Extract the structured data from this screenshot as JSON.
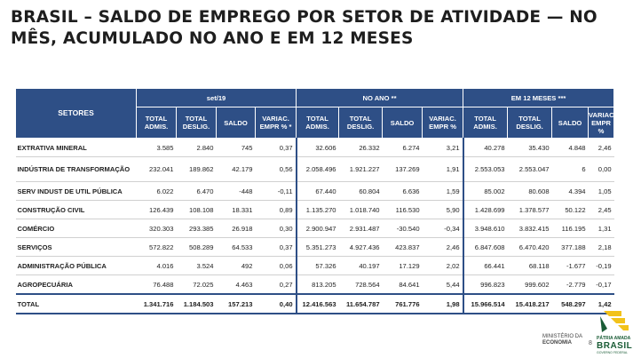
{
  "title": {
    "line1": "BRASIL – SALDO DE EMPREGO POR SETOR DE ATIVIDADE — NO",
    "line2": "MÊS, ACUMULADO NO ANO E EM 12 MESES"
  },
  "table": {
    "sector_header": "SETORES",
    "groups": [
      "set/19",
      "NO ANO **",
      "EM 12 MESES ***"
    ],
    "subheaders": [
      "TOTAL ADMIS.",
      "TOTAL DESLIG.",
      "SALDO",
      "VARIAC. EMPR % *",
      "TOTAL ADMIS.",
      "TOTAL DESLIG.",
      "SALDO",
      "VARIAC. EMPR %",
      "TOTAL ADMIS.",
      "TOTAL DESLIG.",
      "SALDO",
      "VARIAC. EMPR %"
    ],
    "rows": [
      {
        "sector": "EXTRATIVA MINERAL",
        "values": [
          "3.585",
          "2.840",
          "745",
          "0,37",
          "32.606",
          "26.332",
          "6.274",
          "3,21",
          "40.278",
          "35.430",
          "4.848",
          "2,46"
        ]
      },
      {
        "sector": "INDÚSTRIA DE TRANSFORMAÇÃO",
        "values": [
          "232.041",
          "189.862",
          "42.179",
          "0,56",
          "2.058.496",
          "1.921.227",
          "137.269",
          "1,91",
          "2.553.053",
          "2.553.047",
          "6",
          "0,00"
        ]
      },
      {
        "sector": "SERV INDUST DE UTIL PÚBLICA",
        "values": [
          "6.022",
          "6.470",
          "-448",
          "-0,11",
          "67.440",
          "60.804",
          "6.636",
          "1,59",
          "85.002",
          "80.608",
          "4.394",
          "1,05"
        ]
      },
      {
        "sector": "CONSTRUÇÃO CIVIL",
        "values": [
          "126.439",
          "108.108",
          "18.331",
          "0,89",
          "1.135.270",
          "1.018.740",
          "116.530",
          "5,90",
          "1.428.699",
          "1.378.577",
          "50.122",
          "2,45"
        ]
      },
      {
        "sector": "COMÉRCIO",
        "values": [
          "320.303",
          "293.385",
          "26.918",
          "0,30",
          "2.900.947",
          "2.931.487",
          "-30.540",
          "-0,34",
          "3.948.610",
          "3.832.415",
          "116.195",
          "1,31"
        ]
      },
      {
        "sector": "SERVIÇOS",
        "values": [
          "572.822",
          "508.289",
          "64.533",
          "0,37",
          "5.351.273",
          "4.927.436",
          "423.837",
          "2,46",
          "6.847.608",
          "6.470.420",
          "377.188",
          "2,18"
        ]
      },
      {
        "sector": "ADMINISTRAÇÃO PÚBLICA",
        "values": [
          "4.016",
          "3.524",
          "492",
          "0,06",
          "57.326",
          "40.197",
          "17.129",
          "2,02",
          "66.441",
          "68.118",
          "-1.677",
          "-0,19"
        ]
      },
      {
        "sector": "AGROPECUÁRIA",
        "values": [
          "76.488",
          "72.025",
          "4.463",
          "0,27",
          "813.205",
          "728.564",
          "84.641",
          "5,44",
          "996.823",
          "999.602",
          "-2.779",
          "-0,17"
        ]
      }
    ],
    "total": {
      "sector": "TOTAL",
      "values": [
        "1.341.716",
        "1.184.503",
        "157.213",
        "0,40",
        "12.416.563",
        "11.654.787",
        "761.776",
        "1,98",
        "15.966.514",
        "15.418.217",
        "548.297",
        "1,42"
      ]
    }
  },
  "footer": {
    "ministry_line1": "MINISTÉRIO DA",
    "ministry_line2": "ECONOMIA",
    "page_number": "8",
    "logo_line1": "PÁTRIA AMADA",
    "logo_line2": "BRASIL",
    "logo_line3": "GOVERNO FEDERAL"
  },
  "colors": {
    "header_bg": "#2e4f86",
    "text": "#1e1e1e",
    "logo_green": "#1a5c36",
    "logo_yellow": "#f2c21a"
  }
}
